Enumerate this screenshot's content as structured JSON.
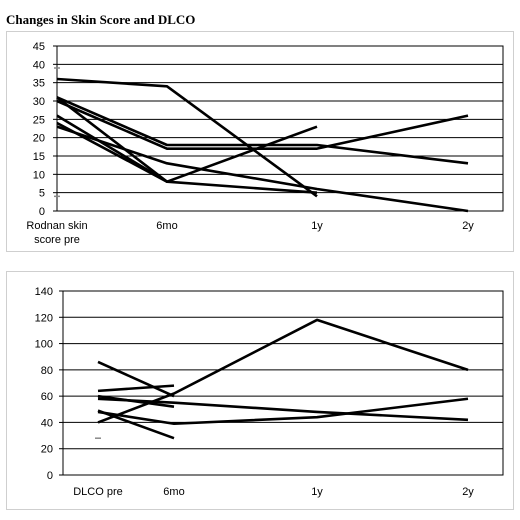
{
  "page": {
    "title": "Changes in Skin Score and DLCO"
  },
  "chart_data": [
    {
      "type": "line",
      "title": "",
      "xlabel": "",
      "ylabel": "",
      "categories": [
        "Rodnan skin score pre",
        "6mo",
        "1y",
        "2y"
      ],
      "ylim": [
        0,
        45
      ],
      "yticks": [
        0,
        5,
        10,
        15,
        20,
        25,
        30,
        35,
        40,
        45
      ],
      "grid": true,
      "legend": "none",
      "line_color": "#000000",
      "series": [
        {
          "values": [
            36,
            34,
            4,
            null
          ]
        },
        {
          "values": [
            31,
            18,
            18,
            13
          ]
        },
        {
          "values": [
            30,
            17,
            17,
            26
          ]
        },
        {
          "values": [
            24,
            8,
            23,
            null
          ]
        },
        {
          "values": [
            23,
            13,
            6,
            0
          ]
        },
        {
          "values": [
            31,
            8,
            5,
            null
          ]
        },
        {
          "values": [
            26,
            8,
            null,
            null
          ]
        }
      ],
      "stray_marks": [
        {
          "x": 0,
          "y": 39
        },
        {
          "x": 0,
          "y": 4
        }
      ]
    },
    {
      "type": "line",
      "title": "",
      "xlabel": "",
      "ylabel": "",
      "categories": [
        "DLCO pre",
        "6mo",
        "1y",
        "2y"
      ],
      "ylim": [
        0,
        140
      ],
      "yticks": [
        0,
        20,
        40,
        60,
        80,
        100,
        120,
        140
      ],
      "grid": true,
      "legend": "none",
      "line_color": "#000000",
      "series": [
        {
          "values": [
            86,
            60,
            null,
            null
          ]
        },
        {
          "values": [
            64,
            68,
            null,
            null
          ]
        },
        {
          "values": [
            40,
            62,
            118,
            80
          ]
        },
        {
          "values": [
            58,
            55,
            48,
            42
          ]
        },
        {
          "values": [
            60,
            52,
            null,
            null
          ]
        },
        {
          "values": [
            48,
            39,
            44,
            58
          ]
        },
        {
          "values": [
            49,
            28,
            null,
            null
          ]
        }
      ],
      "stray_marks": [
        {
          "x": 0,
          "y": 28
        }
      ]
    }
  ]
}
